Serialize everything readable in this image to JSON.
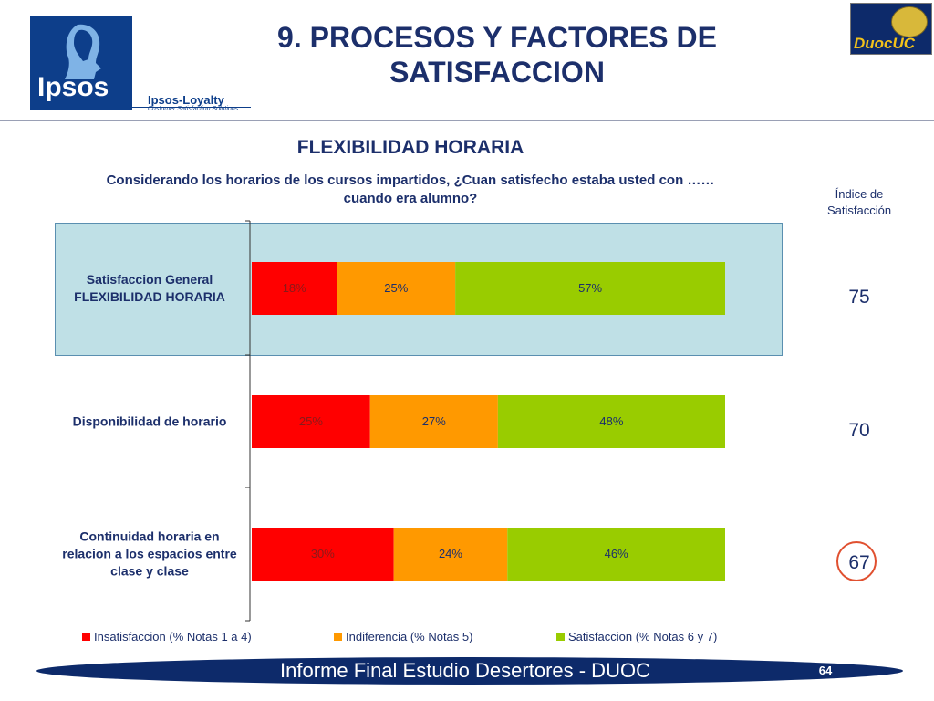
{
  "header": {
    "title_line1": "9. PROCESOS Y FACTORES DE",
    "title_line2": "SATISFACCION",
    "logo_ipsos": "Ipsos",
    "loyalty_name": "Ipsos-Loyalty",
    "loyalty_tagline": "Customer Satisfaction Solutions",
    "logo_duoc": "DuocUC"
  },
  "section_title": "FLEXIBILIDAD HORARIA",
  "question_line1": "Considerando los horarios de los cursos impartidos, ¿Cuan satisfecho estaba usted con ……",
  "question_line2": "cuando era alumno?",
  "index_header_line1": "Índice de",
  "index_header_line2": "Satisfacción",
  "chart_data": {
    "type": "bar",
    "orientation": "horizontal",
    "stacked": true,
    "categories": [
      [
        "Satisfaccion General",
        "FLEXIBILIDAD HORARIA"
      ],
      [
        "Disponibilidad de horario"
      ],
      [
        "Continuidad horaria en",
        "relacion a los espacios entre",
        "clase y clase"
      ]
    ],
    "series": [
      {
        "name": "Insatisfaccion (% Notas 1 a 4)",
        "color": "#ff0000",
        "values": [
          18,
          25,
          30
        ],
        "labels": [
          "18%",
          "25%",
          "30%"
        ]
      },
      {
        "name": "Indiferencia (% Notas 5)",
        "color": "#ff9900",
        "values": [
          25,
          27,
          24
        ],
        "labels": [
          "25%",
          "27%",
          "24%"
        ]
      },
      {
        "name": "Satisfaccion (% Notas 6 y 7)",
        "color": "#99cc00",
        "values": [
          57,
          48,
          46
        ],
        "labels": [
          "57%",
          "48%",
          "46%"
        ]
      }
    ],
    "xlim": [
      0,
      100
    ],
    "legend_position": "bottom",
    "grid": false,
    "highlighted_category": 0
  },
  "satisfaction_index": [
    "75",
    "70",
    "67"
  ],
  "highlighted_index": 2,
  "footer": {
    "text": "Informe Final Estudio Desertores - DUOC",
    "page": "64"
  }
}
